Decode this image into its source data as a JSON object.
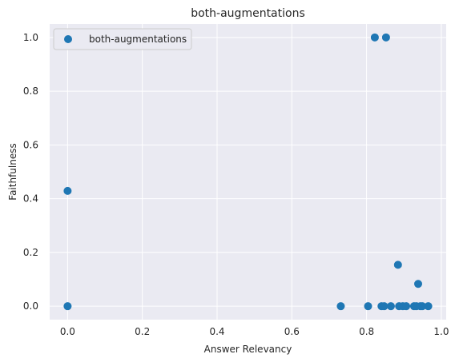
{
  "chart_data": {
    "type": "scatter",
    "title": "both-augmentations",
    "xlabel": "Answer Relevancy",
    "ylabel": "Faithfulness",
    "xlim": [
      -0.048,
      1.013
    ],
    "ylim": [
      -0.05,
      1.05
    ],
    "xticks": [
      0.0,
      0.2,
      0.4,
      0.6,
      0.8,
      1.0
    ],
    "yticks": [
      0.0,
      0.2,
      0.4,
      0.6,
      0.8,
      1.0
    ],
    "xtick_labels": [
      "0.0",
      "0.2",
      "0.4",
      "0.6",
      "0.8",
      "1.0"
    ],
    "ytick_labels": [
      "0.0",
      "0.2",
      "0.4",
      "0.6",
      "0.8",
      "1.0"
    ],
    "grid": true,
    "legend_position": "top-left",
    "series": [
      {
        "name": "both-augmentations",
        "color": "#1f77b4",
        "points": [
          {
            "x": 0.0,
            "y": 0.429
          },
          {
            "x": 0.0,
            "y": 0.0
          },
          {
            "x": 0.731,
            "y": 0.0
          },
          {
            "x": 0.804,
            "y": 0.0
          },
          {
            "x": 0.822,
            "y": 1.0
          },
          {
            "x": 0.852,
            "y": 1.0
          },
          {
            "x": 0.84,
            "y": 0.0
          },
          {
            "x": 0.847,
            "y": 0.0
          },
          {
            "x": 0.865,
            "y": 0.0
          },
          {
            "x": 0.884,
            "y": 0.154
          },
          {
            "x": 0.887,
            "y": 0.0
          },
          {
            "x": 0.897,
            "y": 0.0
          },
          {
            "x": 0.906,
            "y": 0.0
          },
          {
            "x": 0.927,
            "y": 0.0
          },
          {
            "x": 0.933,
            "y": 0.0
          },
          {
            "x": 0.938,
            "y": 0.083
          },
          {
            "x": 0.944,
            "y": 0.0
          },
          {
            "x": 0.949,
            "y": 0.0
          },
          {
            "x": 0.965,
            "y": 0.0
          }
        ]
      }
    ]
  }
}
